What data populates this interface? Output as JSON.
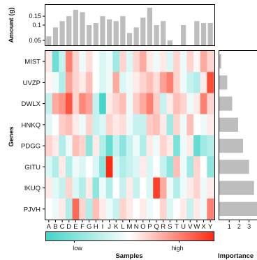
{
  "chart_data": [
    {
      "type": "bar",
      "ylabel": "Amount (g)",
      "categories": [
        "A",
        "B",
        "C",
        "D",
        "E",
        "F",
        "G",
        "H",
        "I",
        "J",
        "K",
        "L",
        "M",
        "N",
        "O",
        "P",
        "Q",
        "R",
        "S",
        "T",
        "U",
        "V",
        "W",
        "X",
        "Y"
      ],
      "values": [
        0.06,
        0.09,
        0.12,
        0.15,
        0.2,
        0.18,
        0.1,
        0.11,
        0.15,
        0.13,
        0.12,
        0.15,
        0.07,
        0.09,
        0.14,
        0.22,
        0.1,
        0.12,
        0.05,
        0.04,
        0.1,
        0.04,
        0.12,
        0.11,
        0.11
      ],
      "yscale": "log",
      "yticks": [
        "0.05",
        "0.1",
        "0.15"
      ],
      "ylim": [
        0.04,
        0.25
      ],
      "bar_color": "#bdbdbd"
    },
    {
      "type": "heatmap",
      "rows": [
        "MIST",
        "UVZP",
        "DWLX",
        "HNKQ",
        "PDGG",
        "GITU",
        "IKUQ",
        "PJVH"
      ],
      "row_axis_label": "Genes",
      "cols": [
        "A",
        "B",
        "C",
        "D",
        "E",
        "F",
        "G",
        "H",
        "I",
        "J",
        "K",
        "L",
        "M",
        "N",
        "O",
        "P",
        "Q",
        "R",
        "S",
        "T",
        "U",
        "V",
        "W",
        "X",
        "Y"
      ],
      "values": [
        [
          0.55,
          0.12,
          0.35,
          0.8,
          0.6,
          0.45,
          0.58,
          0.5,
          0.4,
          0.45,
          0.25,
          0.6,
          0.4,
          0.6,
          0.7,
          0.55,
          0.45,
          0.55,
          0.4,
          0.6,
          0.45,
          0.6,
          0.52,
          0.7,
          0.6
        ],
        [
          0.52,
          0.45,
          0.3,
          0.72,
          0.6,
          0.55,
          0.65,
          0.5,
          0.4,
          0.45,
          0.7,
          0.4,
          0.45,
          0.55,
          0.6,
          0.65,
          0.58,
          0.72,
          0.8,
          0.6,
          0.45,
          0.35,
          0.3,
          0.55,
          0.92
        ],
        [
          0.35,
          0.7,
          0.75,
          0.9,
          0.6,
          0.78,
          0.72,
          0.35,
          0.02,
          0.55,
          0.6,
          0.65,
          0.45,
          0.62,
          0.7,
          0.8,
          0.62,
          0.35,
          0.55,
          0.65,
          0.6,
          0.45,
          0.55,
          0.8,
          0.6
        ],
        [
          0.42,
          0.5,
          0.62,
          0.65,
          0.55,
          0.45,
          0.6,
          0.35,
          0.4,
          0.6,
          0.55,
          0.58,
          0.45,
          0.35,
          0.35,
          0.62,
          0.65,
          0.55,
          0.25,
          0.6,
          0.45,
          0.65,
          0.5,
          0.45,
          0.55
        ],
        [
          0.6,
          0.55,
          0.3,
          0.45,
          0.65,
          0.6,
          0.2,
          0.55,
          0.3,
          0.1,
          0.35,
          0.2,
          0.35,
          0.45,
          0.3,
          0.55,
          0.45,
          0.6,
          0.55,
          0.15,
          0.45,
          0.55,
          0.1,
          0.25,
          0.3
        ],
        [
          0.4,
          0.3,
          0.55,
          0.3,
          0.45,
          0.4,
          0.5,
          0.4,
          0.2,
          1.0,
          0.4,
          0.3,
          0.35,
          0.4,
          0.55,
          0.4,
          0.5,
          0.35,
          0.2,
          0.65,
          0.45,
          0.25,
          0.6,
          0.5,
          0.2
        ],
        [
          0.55,
          0.42,
          0.35,
          0.6,
          0.4,
          0.3,
          0.55,
          0.2,
          0.45,
          0.3,
          0.5,
          0.35,
          0.55,
          0.35,
          0.5,
          0.4,
          0.95,
          0.7,
          0.45,
          0.3,
          0.45,
          0.55,
          0.6,
          0.45,
          0.55
        ],
        [
          0.5,
          0.45,
          0.55,
          0.3,
          0.85,
          0.6,
          0.3,
          0.65,
          0.55,
          0.45,
          0.35,
          0.6,
          0.55,
          0.5,
          0.55,
          0.45,
          0.5,
          0.6,
          0.4,
          0.5,
          0.55,
          0.35,
          0.55,
          0.45,
          0.8
        ]
      ],
      "colormap": {
        "low": "#3fd5c8",
        "mid": "#ffffff",
        "high": "#ff2a10"
      },
      "colorbar": {
        "xlabel": "Samples",
        "low_label": "low",
        "high_label": "high"
      }
    },
    {
      "type": "bar",
      "orientation": "horizontal",
      "xlabel": "Importance",
      "categories": [
        "MIST",
        "UVZP",
        "DWLX",
        "HNKQ",
        "PDGG",
        "GITU",
        "IKUQ",
        "PJVH"
      ],
      "values": [
        0.2,
        0.8,
        1.3,
        1.9,
        2.4,
        3.0,
        3.5,
        4.2
      ],
      "xticks": [
        "1",
        "2",
        "3",
        "4"
      ],
      "xlim": [
        0,
        4.2
      ],
      "bar_color": "#bdbdbd"
    }
  ]
}
